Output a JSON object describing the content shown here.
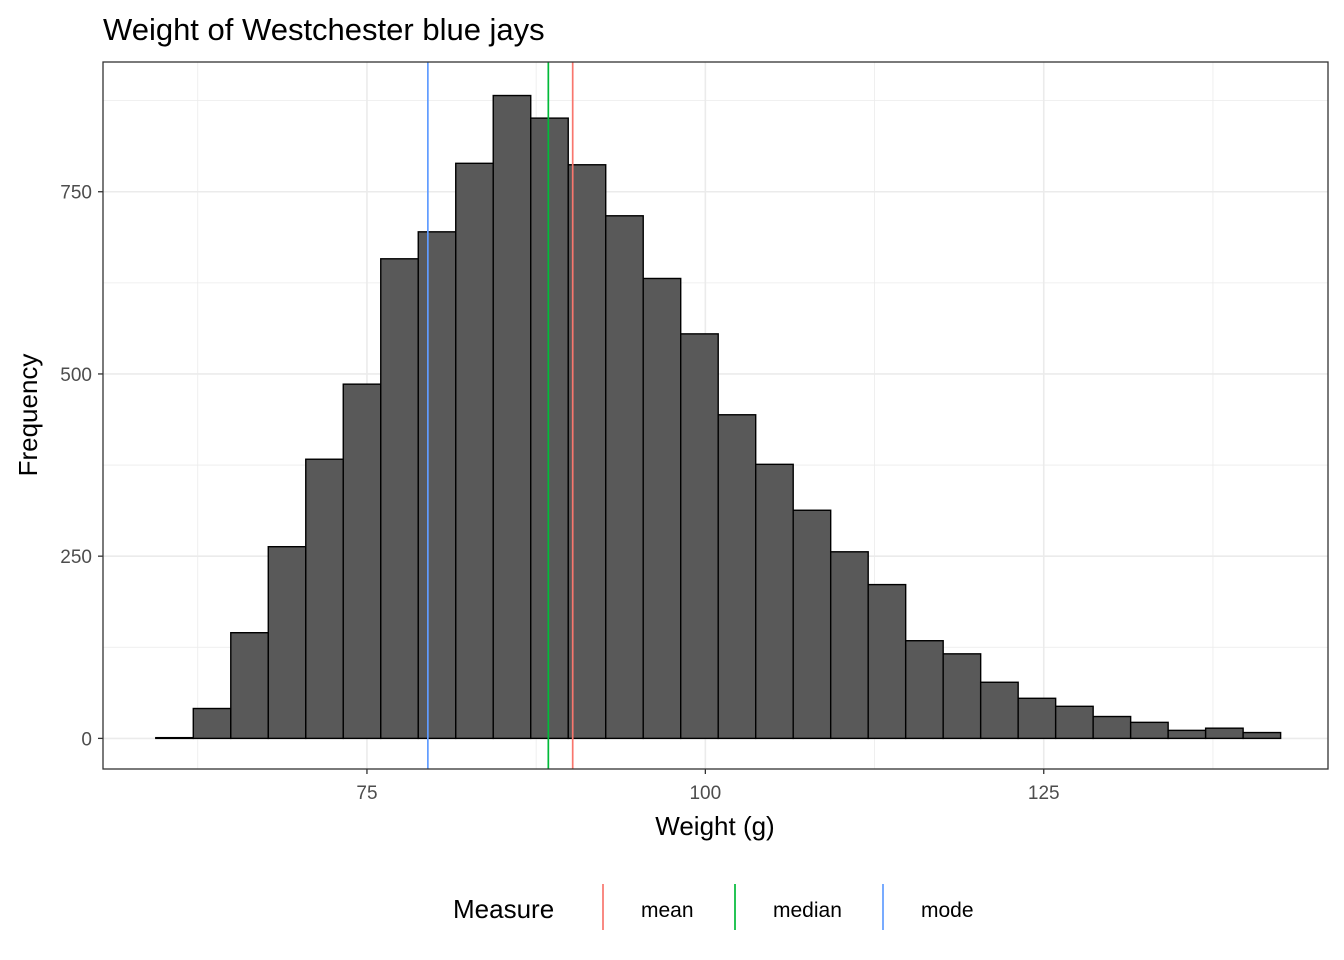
{
  "chart_data": {
    "type": "histogram",
    "title": "Weight of Westchester blue jays",
    "xlabel": "Weight (g)",
    "ylabel": "Frequency",
    "xlim": [
      55.5,
      146.0
    ],
    "ylim": [
      -42,
      928
    ],
    "x_ticks": [
      75,
      100,
      125
    ],
    "y_ticks": [
      0,
      250,
      500,
      750
    ],
    "grid": true,
    "bin_width": 2.77,
    "bins": [
      {
        "x0": 59.4,
        "x1": 62.17,
        "count": 1
      },
      {
        "x0": 62.17,
        "x1": 64.94,
        "count": 41
      },
      {
        "x0": 64.94,
        "x1": 67.71,
        "count": 145
      },
      {
        "x0": 67.71,
        "x1": 70.48,
        "count": 263
      },
      {
        "x0": 70.48,
        "x1": 73.25,
        "count": 383
      },
      {
        "x0": 73.25,
        "x1": 76.02,
        "count": 486
      },
      {
        "x0": 76.02,
        "x1": 78.79,
        "count": 658
      },
      {
        "x0": 78.79,
        "x1": 81.56,
        "count": 695
      },
      {
        "x0": 81.56,
        "x1": 84.33,
        "count": 789
      },
      {
        "x0": 84.33,
        "x1": 87.1,
        "count": 882
      },
      {
        "x0": 87.1,
        "x1": 89.87,
        "count": 851
      },
      {
        "x0": 89.87,
        "x1": 92.64,
        "count": 787
      },
      {
        "x0": 92.64,
        "x1": 95.41,
        "count": 717
      },
      {
        "x0": 95.41,
        "x1": 98.18,
        "count": 631
      },
      {
        "x0": 98.18,
        "x1": 100.95,
        "count": 555
      },
      {
        "x0": 100.95,
        "x1": 103.72,
        "count": 444
      },
      {
        "x0": 103.72,
        "x1": 106.49,
        "count": 376
      },
      {
        "x0": 106.49,
        "x1": 109.26,
        "count": 313
      },
      {
        "x0": 109.26,
        "x1": 112.03,
        "count": 256
      },
      {
        "x0": 112.03,
        "x1": 114.8,
        "count": 211
      },
      {
        "x0": 114.8,
        "x1": 117.57,
        "count": 134
      },
      {
        "x0": 117.57,
        "x1": 120.34,
        "count": 116
      },
      {
        "x0": 120.34,
        "x1": 123.11,
        "count": 77
      },
      {
        "x0": 123.11,
        "x1": 125.88,
        "count": 55
      },
      {
        "x0": 125.88,
        "x1": 128.65,
        "count": 44
      },
      {
        "x0": 128.65,
        "x1": 131.42,
        "count": 30
      },
      {
        "x0": 131.42,
        "x1": 134.19,
        "count": 22
      },
      {
        "x0": 134.19,
        "x1": 136.96,
        "count": 11
      },
      {
        "x0": 136.96,
        "x1": 139.73,
        "count": 14
      },
      {
        "x0": 139.73,
        "x1": 142.5,
        "count": 8
      }
    ],
    "bar_fill": "#595959",
    "bar_stroke": "#000000",
    "grid_color": "#ebebeb",
    "reference_lines": [
      {
        "name": "mean",
        "x": 90.2,
        "color": "#F8766D"
      },
      {
        "name": "median",
        "x": 88.4,
        "color": "#00BA38"
      },
      {
        "name": "mode",
        "x": 79.5,
        "color": "#619CFF"
      }
    ],
    "legend": {
      "title": "Measure",
      "position": "bottom",
      "items": [
        "mean",
        "median",
        "mode"
      ]
    }
  }
}
